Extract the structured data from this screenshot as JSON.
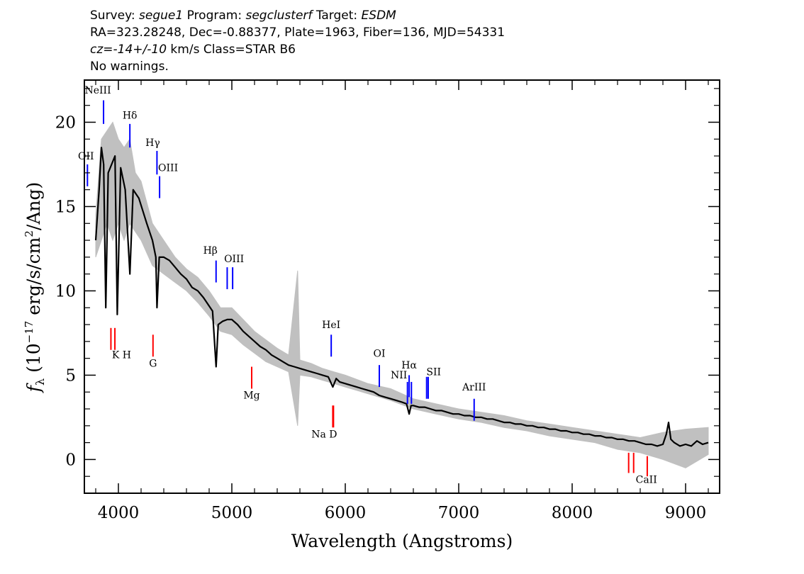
{
  "header": {
    "line1": {
      "survey_label": "Survey:",
      "survey": "segue1",
      "program_label": "Program:",
      "program": "segclusterf",
      "target_label": "Target:",
      "target": "ESDM"
    },
    "line2": "RA=323.28248, Dec=-0.88377, Plate=1963, Fiber=136, MJD=54331",
    "line3": {
      "cz": "cz=-14+/-10",
      "rest": " km/s Class=STAR B6"
    },
    "line4": "No warnings."
  },
  "chart_data": {
    "type": "line",
    "xlabel": "Wavelength (Angstroms)",
    "ylabel": "f_λ (10^-17 erg/s/cm^2/Ang)",
    "xlim": [
      3700,
      9300
    ],
    "ylim": [
      -2,
      22.5
    ],
    "xticks": [
      4000,
      5000,
      6000,
      7000,
      8000,
      9000
    ],
    "yticks": [
      0,
      5,
      10,
      15,
      20
    ],
    "series": [
      {
        "role": "flux",
        "color": "#000000",
        "x": [
          3800,
          3830,
          3850,
          3870,
          3889,
          3910,
          3940,
          3970,
          3990,
          4020,
          4060,
          4101,
          4130,
          4180,
          4250,
          4300,
          4330,
          4340,
          4360,
          4400,
          4450,
          4500,
          4550,
          4600,
          4650,
          4700,
          4750,
          4800,
          4830,
          4861,
          4880,
          4920,
          4960,
          5000,
          5050,
          5100,
          5150,
          5200,
          5250,
          5300,
          5350,
          5400,
          5450,
          5500,
          5550,
          5600,
          5650,
          5700,
          5750,
          5800,
          5850,
          5890,
          5920,
          5950,
          6000,
          6050,
          6100,
          6150,
          6200,
          6250,
          6300,
          6350,
          6400,
          6450,
          6500,
          6540,
          6563,
          6580,
          6600,
          6650,
          6700,
          6750,
          6800,
          6850,
          6900,
          6950,
          7000,
          7050,
          7100,
          7150,
          7200,
          7250,
          7300,
          7350,
          7400,
          7450,
          7500,
          7550,
          7600,
          7650,
          7700,
          7750,
          7800,
          7850,
          7900,
          7950,
          8000,
          8050,
          8100,
          8150,
          8200,
          8250,
          8300,
          8350,
          8400,
          8450,
          8500,
          8550,
          8600,
          8650,
          8700,
          8750,
          8800,
          8830,
          8850,
          8870,
          8900,
          8950,
          9000,
          9050,
          9100,
          9150,
          9200
        ],
        "y": [
          13,
          16,
          18.5,
          17.5,
          9,
          17,
          17.5,
          18,
          8.6,
          17.3,
          16,
          11,
          16,
          15.5,
          14,
          13,
          12,
          9,
          12,
          12,
          11.8,
          11.4,
          11,
          10.7,
          10.2,
          10,
          9.6,
          9.1,
          8.8,
          5.5,
          8,
          8.2,
          8.3,
          8.3,
          8,
          7.6,
          7.3,
          7,
          6.7,
          6.5,
          6.2,
          6,
          5.8,
          5.6,
          5.5,
          5.4,
          5.3,
          5.2,
          5.1,
          5,
          4.9,
          4.3,
          4.8,
          4.6,
          4.5,
          4.4,
          4.3,
          4.2,
          4.1,
          4,
          3.8,
          3.7,
          3.6,
          3.5,
          3.4,
          3.3,
          2.7,
          3.2,
          3.2,
          3.1,
          3.1,
          3,
          2.9,
          2.9,
          2.8,
          2.7,
          2.7,
          2.6,
          2.6,
          2.5,
          2.5,
          2.4,
          2.4,
          2.3,
          2.2,
          2.2,
          2.1,
          2.1,
          2,
          2,
          1.9,
          1.9,
          1.8,
          1.8,
          1.7,
          1.7,
          1.6,
          1.6,
          1.5,
          1.5,
          1.4,
          1.4,
          1.3,
          1.3,
          1.2,
          1.2,
          1.1,
          1.1,
          1,
          0.9,
          0.9,
          0.8,
          0.9,
          1.5,
          2.2,
          1.2,
          1,
          0.8,
          0.9,
          0.8,
          1.1,
          0.9,
          1
        ]
      },
      {
        "role": "error",
        "color": "#c0c0c0",
        "x": [
          3800,
          3850,
          3900,
          3950,
          4000,
          4050,
          4100,
          4150,
          4200,
          4300,
          4400,
          4500,
          4600,
          4700,
          4800,
          4900,
          5000,
          5100,
          5200,
          5300,
          5400,
          5500,
          5580,
          5600,
          5700,
          5800,
          5900,
          6000,
          6200,
          6400,
          6600,
          6800,
          7000,
          7200,
          7400,
          7600,
          7800,
          8000,
          8200,
          8400,
          8600,
          8800,
          9000,
          9200
        ],
        "low": [
          12,
          13,
          14,
          13,
          14,
          13,
          14,
          13.5,
          13,
          11.5,
          11,
          10.5,
          10,
          9.3,
          8.5,
          7.6,
          7.4,
          6.8,
          6.3,
          5.8,
          5.5,
          5.2,
          2,
          5,
          4.9,
          4.7,
          4.5,
          4.3,
          3.9,
          3.5,
          3,
          2.7,
          2.4,
          2.2,
          1.9,
          1.7,
          1.4,
          1.2,
          1,
          0.6,
          0.4,
          0,
          -0.5,
          0.3
        ],
        "high": [
          14.5,
          19,
          19.5,
          20,
          19,
          18.5,
          19,
          17,
          16.5,
          14,
          13,
          12,
          11.3,
          10.8,
          10,
          9,
          9,
          8.3,
          7.6,
          7.1,
          6.6,
          6.2,
          11.2,
          5.9,
          5.7,
          5.4,
          5.2,
          5,
          4.5,
          4.2,
          3.6,
          3.3,
          3,
          2.8,
          2.6,
          2.3,
          2.1,
          1.9,
          1.7,
          1.5,
          1.3,
          1.6,
          1.8,
          1.9
        ]
      }
    ],
    "emission_lines": [
      {
        "name": "NeIII",
        "x": 3869
      },
      {
        "name": "Hδ",
        "x": 4101
      },
      {
        "name": "Hγ",
        "x": 4340
      },
      {
        "name": "OIII",
        "x": 4363
      },
      {
        "name": "OII",
        "x": 3727
      },
      {
        "name": "Hβ",
        "x": 4861
      },
      {
        "name": "OIII",
        "x": 4959
      },
      {
        "name": "OIII_b",
        "x": 5007
      },
      {
        "name": "HeI",
        "x": 5876
      },
      {
        "name": "OI",
        "x": 6300
      },
      {
        "name": "NII",
        "x": 6548
      },
      {
        "name": "Hα",
        "x": 6563
      },
      {
        "name": "NII_b",
        "x": 6583
      },
      {
        "name": "SII",
        "x": 6717
      },
      {
        "name": "SII_b",
        "x": 6731
      },
      {
        "name": "ArIII",
        "x": 7136
      }
    ],
    "absorption_lines": [
      {
        "name": "K",
        "x": 3934
      },
      {
        "name": "H",
        "x": 3969
      },
      {
        "name": "G",
        "x": 4305
      },
      {
        "name": "Mg",
        "x": 5175
      },
      {
        "name": "Na",
        "x": 5890
      },
      {
        "name": "D",
        "x": 5896
      },
      {
        "name": "CaII",
        "x": 8498
      },
      {
        "name": "CaII_b",
        "x": 8542
      },
      {
        "name": "CaII_c",
        "x": 8662
      }
    ],
    "line_labels": {
      "NeIII": "NeIII",
      "Hdelta": "Hδ",
      "Hgamma": "Hγ",
      "OIII_a": "OIII",
      "OII": "OII",
      "Hbeta": "Hβ",
      "OIII_b": "OIII",
      "HeI": "HeI",
      "OI": "OI",
      "NII": "NII",
      "Halpha": "Hα",
      "NII_b": "NII",
      "SII": "SII",
      "ArIII": "ArIII",
      "KH": "K H",
      "G": "G",
      "Mg": "Mg",
      "NaD": "Na  D",
      "CaII": "CaII"
    },
    "colors": {
      "emission": "#0000ff",
      "absorption": "#ff0000",
      "flux": "#000000",
      "error": "#c0c0c0"
    }
  }
}
